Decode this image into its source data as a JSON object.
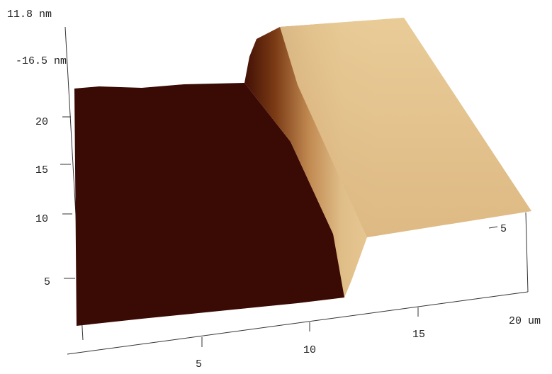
{
  "z_axis": {
    "max_label": "11.8 nm",
    "min_label": "-16.5 nm"
  },
  "y_axis": {
    "ticks": [
      "20",
      "15",
      "10",
      "5"
    ]
  },
  "x_axis": {
    "ticks": [
      "5",
      "10",
      "15",
      "20 um"
    ]
  },
  "right_axis": {
    "ticks": [
      "5"
    ]
  }
}
